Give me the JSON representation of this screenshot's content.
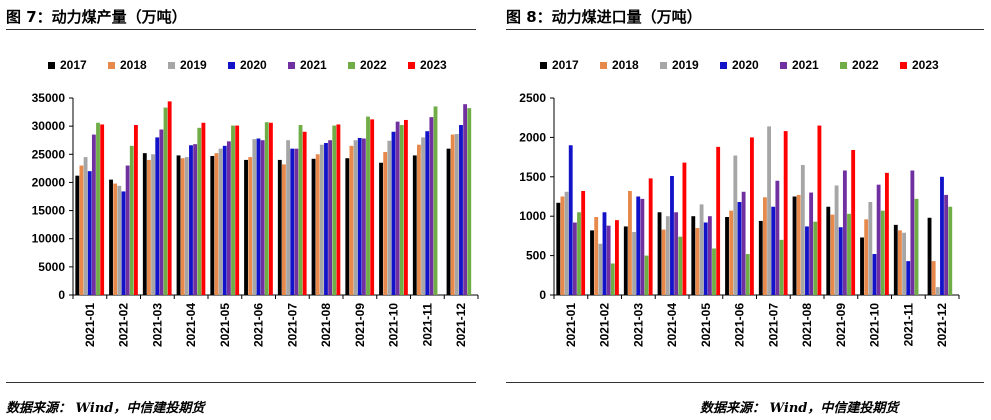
{
  "left": {
    "title": "图 7：动力煤产量（万吨）",
    "source": "数据来源： Wind，中信建投期货"
  },
  "right": {
    "title": "图 8：动力煤进口量（万吨）",
    "source": "数据来源： Wind，中信建投期货"
  },
  "colors": {
    "2017": "#000000",
    "2018": "#e6894b",
    "2019": "#a6a6a6",
    "2020": "#1212c8",
    "2021": "#7030a0",
    "2022": "#70ad47",
    "2023": "#ff0000"
  },
  "chart_data": [
    {
      "type": "bar",
      "title": "图 7：动力煤产量（万吨）",
      "categories": [
        "2021-01",
        "2021-02",
        "2021-03",
        "2021-04",
        "2021-05",
        "2021-06",
        "2021-07",
        "2021-08",
        "2021-09",
        "2021-10",
        "2021-11",
        "2021-12"
      ],
      "ylim": [
        0,
        35000
      ],
      "yticks": [
        0,
        5000,
        10000,
        15000,
        20000,
        25000,
        30000,
        35000
      ],
      "legend": "top",
      "series": [
        {
          "name": "2017",
          "values": [
            21200,
            20500,
            25200,
            24800,
            24700,
            24000,
            24000,
            24200,
            24300,
            23500,
            24800,
            26000
          ]
        },
        {
          "name": "2018",
          "values": [
            23000,
            19800,
            24000,
            24300,
            25200,
            24500,
            23200,
            25000,
            26500,
            25400,
            26700,
            28500
          ]
        },
        {
          "name": "2019",
          "values": [
            24500,
            19400,
            25000,
            24500,
            26000,
            27700,
            27500,
            26700,
            27500,
            27400,
            28000,
            28600
          ]
        },
        {
          "name": "2020",
          "values": [
            22000,
            18400,
            28000,
            26600,
            26500,
            27800,
            26000,
            27000,
            27900,
            29000,
            29100,
            30200
          ]
        },
        {
          "name": "2021",
          "values": [
            28500,
            23000,
            29400,
            26800,
            27300,
            27500,
            26000,
            27500,
            27800,
            30800,
            31600,
            33900
          ]
        },
        {
          "name": "2022",
          "values": [
            30600,
            26500,
            33300,
            29700,
            30100,
            30700,
            30200,
            30100,
            31700,
            30200,
            33500,
            33200
          ]
        },
        {
          "name": "2023",
          "values": [
            30300,
            30200,
            34400,
            30600,
            30100,
            30600,
            29000,
            30300,
            31200,
            31100,
            null,
            null
          ]
        }
      ]
    },
    {
      "type": "bar",
      "title": "图 8：动力煤进口量（万吨）",
      "categories": [
        "2021-01",
        "2021-02",
        "2021-03",
        "2021-04",
        "2021-05",
        "2021-06",
        "2021-07",
        "2021-08",
        "2021-09",
        "2021-10",
        "2021-11",
        "2021-12"
      ],
      "ylim": [
        0,
        2500
      ],
      "yticks": [
        0,
        500,
        1000,
        1500,
        2000,
        2500
      ],
      "legend": "top",
      "series": [
        {
          "name": "2017",
          "values": [
            1170,
            820,
            870,
            1050,
            1000,
            990,
            940,
            1250,
            1120,
            730,
            890,
            980
          ]
        },
        {
          "name": "2018",
          "values": [
            1250,
            990,
            1320,
            830,
            850,
            1070,
            1240,
            1270,
            1020,
            960,
            820,
            430
          ]
        },
        {
          "name": "2019",
          "values": [
            1310,
            650,
            800,
            1000,
            1150,
            1770,
            2140,
            1650,
            1390,
            1180,
            790,
            100
          ]
        },
        {
          "name": "2020",
          "values": [
            1900,
            1050,
            1250,
            1510,
            920,
            1180,
            1120,
            870,
            860,
            520,
            430,
            1500
          ]
        },
        {
          "name": "2021",
          "values": [
            920,
            880,
            1220,
            1050,
            1000,
            1310,
            1450,
            1300,
            1580,
            1400,
            1580,
            1270
          ]
        },
        {
          "name": "2022",
          "values": [
            1050,
            400,
            500,
            740,
            590,
            520,
            700,
            930,
            1030,
            1070,
            1220,
            1120
          ]
        },
        {
          "name": "2023",
          "values": [
            1320,
            950,
            1480,
            1680,
            1880,
            2000,
            2080,
            2150,
            1840,
            1550,
            null,
            null
          ]
        }
      ]
    }
  ]
}
